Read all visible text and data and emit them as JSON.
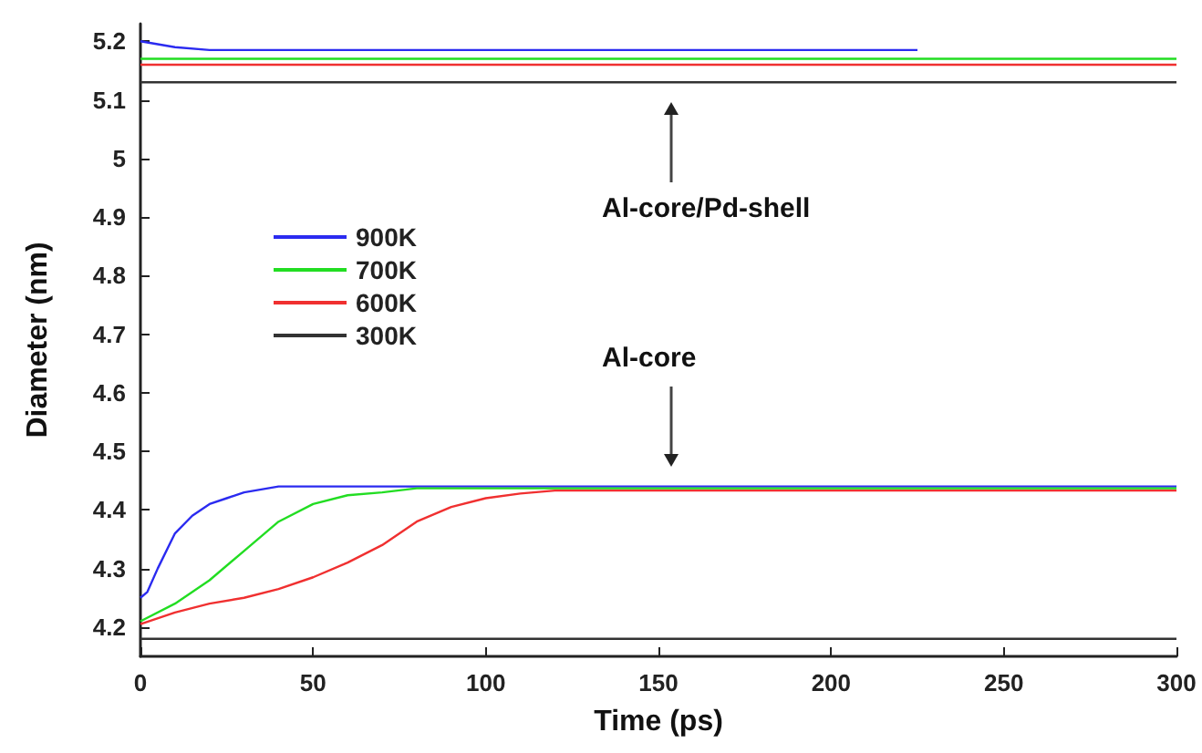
{
  "chart_data": {
    "type": "line",
    "xlabel": "Time (ps)",
    "ylabel": "Diameter (nm)",
    "xlim": [
      0,
      300
    ],
    "xticks": [
      0,
      50,
      100,
      150,
      200,
      250,
      300
    ],
    "ylim": [
      4.15,
      5.23
    ],
    "yticks": [
      4.2,
      4.3,
      4.4,
      4.5,
      4.6,
      4.7,
      4.8,
      4.9,
      5.0,
      5.1,
      5.2
    ],
    "grid": false,
    "legend": "left",
    "marker": "none",
    "line_style": "solid",
    "annotations": [
      "Al-core/Pd-shell",
      "Al-core"
    ],
    "series": [
      {
        "name": "900K",
        "color": "#2b2bf0",
        "x": [
          0,
          2,
          5,
          10,
          15,
          20,
          25,
          30,
          40,
          50,
          100,
          150,
          200,
          250,
          300
        ],
        "values": [
          4.25,
          4.26,
          4.3,
          4.36,
          4.39,
          4.41,
          4.42,
          4.43,
          4.44,
          4.44,
          4.44,
          4.44,
          4.44,
          4.44,
          4.44
        ]
      },
      {
        "name": "700K",
        "color": "#22dd22",
        "x": [
          0,
          10,
          20,
          30,
          40,
          50,
          60,
          70,
          80,
          100,
          150,
          200,
          250,
          300
        ],
        "values": [
          4.21,
          4.24,
          4.28,
          4.33,
          4.38,
          4.41,
          4.425,
          4.43,
          4.437,
          4.437,
          4.437,
          4.437,
          4.437,
          4.437
        ]
      },
      {
        "name": "600K",
        "color": "#f03030",
        "x": [
          0,
          10,
          20,
          30,
          40,
          50,
          60,
          70,
          80,
          90,
          100,
          110,
          120,
          150,
          200,
          250,
          300
        ],
        "values": [
          4.205,
          4.225,
          4.24,
          4.25,
          4.265,
          4.285,
          4.31,
          4.34,
          4.38,
          4.405,
          4.42,
          4.428,
          4.433,
          4.433,
          4.433,
          4.433,
          4.433
        ]
      },
      {
        "name": "300K",
        "color": "#333333",
        "x": [
          0,
          50,
          100,
          150,
          200,
          250,
          300
        ],
        "values": [
          4.18,
          4.18,
          4.18,
          4.18,
          4.18,
          4.18,
          4.18
        ]
      },
      {
        "color": "#2b2bf0",
        "x": [
          0,
          10,
          20,
          50,
          100,
          150,
          200,
          225
        ],
        "values": [
          5.2,
          5.19,
          5.185,
          5.185,
          5.185,
          5.185,
          5.185,
          5.185
        ]
      },
      {
        "color": "#22dd22",
        "x": [
          0,
          50,
          100,
          150,
          200,
          250,
          300
        ],
        "values": [
          5.17,
          5.17,
          5.17,
          5.17,
          5.17,
          5.17,
          5.17
        ]
      },
      {
        "color": "#f03030",
        "x": [
          0,
          50,
          100,
          150,
          200,
          250,
          300
        ],
        "values": [
          5.16,
          5.16,
          5.16,
          5.16,
          5.16,
          5.16,
          5.16
        ]
      },
      {
        "color": "#333333",
        "x": [
          0,
          50,
          100,
          150,
          200,
          250,
          300
        ],
        "values": [
          5.13,
          5.13,
          5.13,
          5.13,
          5.13,
          5.13,
          5.13
        ]
      }
    ]
  }
}
